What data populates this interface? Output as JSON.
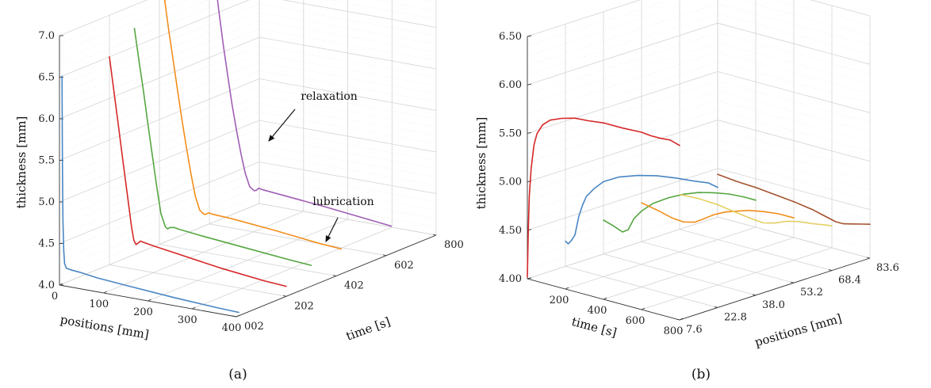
{
  "chart_data": [
    {
      "panel": "a",
      "type": "line",
      "caption": "(a)",
      "xlabel": "positions [mm]",
      "ylabel": "time [s]",
      "zlabel": "thickness [mm]",
      "xlim": [
        0,
        400
      ],
      "ylim": [
        0,
        800
      ],
      "zlim": [
        4.0,
        7.0
      ],
      "xticks": [
        "0",
        "100",
        "200",
        "300",
        "400"
      ],
      "yticks": [
        "002",
        "202",
        "402",
        "602",
        "800"
      ],
      "zticks": [
        "4.0",
        "4.5",
        "5.0",
        "5.5",
        "6.0",
        "6.5",
        "7.0"
      ],
      "grid": true,
      "annotations": [
        {
          "text": "relaxation",
          "x": 400,
          "y": 660,
          "z": 5.8
        },
        {
          "text": "lubrication",
          "x": 400,
          "y": 700,
          "z": 4.4
        }
      ],
      "series": [
        {
          "color": "#4a86c4",
          "time": 10,
          "x": [
            0,
            1,
            2,
            4,
            6,
            10,
            20,
            40,
            80,
            150,
            250,
            350,
            400
          ],
          "z": [
            6.5,
            5.5,
            4.8,
            4.4,
            4.25,
            4.2,
            4.19,
            4.18,
            4.15,
            4.12,
            4.08,
            4.05,
            4.04
          ]
        },
        {
          "color": "#d62728",
          "time": 200,
          "x": [
            0,
            10,
            20,
            30,
            40,
            50,
            55,
            60,
            65,
            70,
            80,
            100,
            150,
            250,
            350,
            400
          ],
          "z": [
            6.5,
            6.1,
            5.7,
            5.3,
            4.9,
            4.5,
            4.35,
            4.3,
            4.32,
            4.35,
            4.34,
            4.32,
            4.28,
            4.2,
            4.14,
            4.12
          ]
        },
        {
          "color": "#55a640",
          "time": 300,
          "x": [
            0,
            10,
            20,
            30,
            40,
            50,
            60,
            70,
            75,
            80,
            90,
            100,
            150,
            250,
            350,
            400
          ],
          "z": [
            6.72,
            6.35,
            6.0,
            5.62,
            5.25,
            4.88,
            4.55,
            4.4,
            4.38,
            4.4,
            4.41,
            4.4,
            4.37,
            4.32,
            4.27,
            4.25
          ]
        },
        {
          "color": "#f28e1c",
          "time": 420,
          "x": [
            0,
            10,
            20,
            30,
            40,
            50,
            60,
            70,
            80,
            90,
            95,
            100,
            110,
            150,
            250,
            350,
            400
          ],
          "z": [
            6.94,
            6.55,
            6.2,
            5.85,
            5.5,
            5.18,
            4.88,
            4.62,
            4.46,
            4.42,
            4.43,
            4.45,
            4.44,
            4.43,
            4.38,
            4.32,
            4.3
          ]
        },
        {
          "color": "#a05eb5",
          "time": 620,
          "x": [
            0,
            10,
            20,
            30,
            40,
            50,
            60,
            70,
            80,
            90,
            95,
            100,
            110,
            150,
            250,
            350,
            400
          ],
          "z": [
            7.0,
            6.55,
            6.15,
            5.8,
            5.45,
            5.15,
            4.88,
            4.65,
            4.5,
            4.46,
            4.47,
            4.5,
            4.49,
            4.47,
            4.42,
            4.36,
            4.33
          ]
        }
      ]
    },
    {
      "panel": "b",
      "type": "line",
      "caption": "(b)",
      "xlabel": "time [s]",
      "ylabel": "positions [mm]",
      "zlabel": "thickness [mm]",
      "xlim": [
        0,
        800
      ],
      "ylim": [
        7.6,
        83.6
      ],
      "zlim": [
        4.0,
        6.5
      ],
      "xticks": [
        "200",
        "400",
        "600",
        "800"
      ],
      "yticks": [
        "7.6",
        "22.8",
        "38.0",
        "53.2",
        "68.4",
        "83.6"
      ],
      "zticks": [
        "4.00",
        "4.50",
        "5.00",
        "5.50",
        "6.00",
        "6.50"
      ],
      "grid": true,
      "series": [
        {
          "color": "#d62728",
          "position": 7.6,
          "t": [
            0,
            5,
            10,
            20,
            35,
            50,
            80,
            120,
            180,
            250,
            320,
            400,
            500,
            600,
            650,
            700,
            750,
            800
          ],
          "z": [
            4.02,
            4.5,
            4.85,
            5.15,
            5.4,
            5.52,
            5.63,
            5.7,
            5.75,
            5.79,
            5.8,
            5.82,
            5.82,
            5.83,
            5.82,
            5.82,
            5.83,
            5.8
          ]
        },
        {
          "color": "#4a86c4",
          "position": 22.8,
          "t": [
            0,
            15,
            30,
            50,
            70,
            90,
            110,
            150,
            200,
            280,
            380,
            480,
            580,
            680,
            750,
            800
          ],
          "z": [
            4.26,
            4.24,
            4.28,
            4.35,
            4.55,
            4.68,
            4.78,
            4.88,
            4.98,
            5.07,
            5.14,
            5.19,
            5.22,
            5.24,
            5.26,
            5.24
          ]
        },
        {
          "color": "#55a640",
          "position": 38.0,
          "t": [
            0,
            50,
            100,
            130,
            160,
            200,
            260,
            340,
            420,
            500,
            580,
            660,
            740,
            800
          ],
          "z": [
            4.35,
            4.32,
            4.28,
            4.32,
            4.45,
            4.55,
            4.66,
            4.76,
            4.84,
            4.9,
            4.94,
            4.97,
            4.98,
            4.98
          ]
        },
        {
          "color": "#f28e1c",
          "position": 53.2,
          "t": [
            0,
            80,
            160,
            220,
            280,
            320,
            380,
            440,
            500,
            560,
            640,
            720,
            800
          ],
          "z": [
            4.4,
            4.37,
            4.33,
            4.32,
            4.35,
            4.4,
            4.48,
            4.54,
            4.58,
            4.62,
            4.65,
            4.67,
            4.67
          ]
        },
        {
          "color": "#e2cf63",
          "position": 68.4,
          "t": [
            0,
            100,
            200,
            300,
            380,
            440,
            500,
            560,
            620,
            700,
            760,
            800
          ],
          "z": [
            4.36,
            4.37,
            4.36,
            4.33,
            4.31,
            4.3,
            4.33,
            4.38,
            4.41,
            4.43,
            4.45,
            4.46
          ]
        },
        {
          "color": "#a4522d",
          "position": 83.6,
          "t": [
            0,
            100,
            200,
            300,
            400,
            500,
            560,
            620,
            660,
            700,
            760,
            800
          ],
          "z": [
            4.44,
            4.42,
            4.41,
            4.39,
            4.37,
            4.34,
            4.31,
            4.28,
            4.28,
            4.3,
            4.33,
            4.35
          ]
        }
      ]
    }
  ]
}
